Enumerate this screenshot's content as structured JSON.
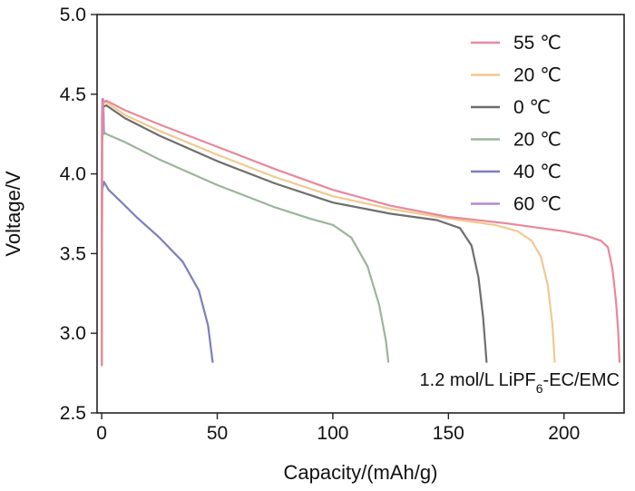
{
  "chart_data": {
    "type": "line",
    "title": "",
    "xlabel": "Capacity/(mAh/g)",
    "ylabel": "Voltage/V",
    "xlim": [
      -2,
      226
    ],
    "ylim": [
      2.5,
      5.0
    ],
    "xticks": [
      0,
      50,
      100,
      150,
      200
    ],
    "yticks": [
      2.5,
      3.0,
      3.5,
      4.0,
      4.5,
      5.0
    ],
    "xtick_labels": [
      "0",
      "50",
      "100",
      "150",
      "200"
    ],
    "ytick_labels": [
      "2.5",
      "3.0",
      "3.5",
      "4.0",
      "4.5",
      "5.0"
    ],
    "grid": false,
    "legend_position": "top-right",
    "annotation": {
      "prefix": "1.2 mol/L LiPF",
      "subscript": "6",
      "suffix": "-EC/EMC"
    },
    "series": [
      {
        "name": "55 ℃",
        "color": "#e8889c",
        "points": [
          [
            0,
            2.8
          ],
          [
            0.2,
            4.3
          ],
          [
            0.5,
            4.45
          ],
          [
            2,
            4.46
          ],
          [
            10,
            4.4
          ],
          [
            25,
            4.31
          ],
          [
            50,
            4.17
          ],
          [
            75,
            4.03
          ],
          [
            100,
            3.9
          ],
          [
            125,
            3.8
          ],
          [
            150,
            3.73
          ],
          [
            175,
            3.69
          ],
          [
            200,
            3.64
          ],
          [
            210,
            3.61
          ],
          [
            216,
            3.58
          ],
          [
            219,
            3.54
          ],
          [
            221,
            3.4
          ],
          [
            222.5,
            3.2
          ],
          [
            223.5,
            3.0
          ],
          [
            224,
            2.82
          ]
        ]
      },
      {
        "name": "20 ℃",
        "color": "#f2c98e",
        "points": [
          [
            0,
            2.8
          ],
          [
            0.2,
            4.3
          ],
          [
            0.5,
            4.44
          ],
          [
            2,
            4.45
          ],
          [
            10,
            4.37
          ],
          [
            25,
            4.27
          ],
          [
            50,
            4.12
          ],
          [
            75,
            3.98
          ],
          [
            100,
            3.86
          ],
          [
            125,
            3.78
          ],
          [
            150,
            3.72
          ],
          [
            170,
            3.68
          ],
          [
            180,
            3.64
          ],
          [
            186,
            3.58
          ],
          [
            190,
            3.48
          ],
          [
            193,
            3.3
          ],
          [
            195,
            3.05
          ],
          [
            196,
            2.82
          ]
        ]
      },
      {
        "name": "0 ℃",
        "color": "#6e6e6e",
        "points": [
          [
            0,
            2.8
          ],
          [
            0.2,
            4.3
          ],
          [
            0.5,
            4.42
          ],
          [
            2,
            4.43
          ],
          [
            10,
            4.35
          ],
          [
            25,
            4.24
          ],
          [
            50,
            4.08
          ],
          [
            75,
            3.94
          ],
          [
            100,
            3.82
          ],
          [
            125,
            3.75
          ],
          [
            145,
            3.71
          ],
          [
            155,
            3.66
          ],
          [
            160,
            3.55
          ],
          [
            163,
            3.35
          ],
          [
            165,
            3.1
          ],
          [
            166.5,
            2.82
          ]
        ]
      },
      {
        "name": "20 ℃",
        "color": "#9bb59a",
        "points": [
          [
            0,
            2.8
          ],
          [
            0.2,
            4.2
          ],
          [
            0.5,
            4.27
          ],
          [
            2,
            4.25
          ],
          [
            10,
            4.2
          ],
          [
            25,
            4.09
          ],
          [
            50,
            3.93
          ],
          [
            75,
            3.79
          ],
          [
            90,
            3.72
          ],
          [
            100,
            3.68
          ],
          [
            108,
            3.6
          ],
          [
            115,
            3.42
          ],
          [
            120,
            3.18
          ],
          [
            123,
            2.95
          ],
          [
            124,
            2.82
          ]
        ]
      },
      {
        "name": "40 ℃",
        "color": "#7d7fbc",
        "points": [
          [
            0,
            2.8
          ],
          [
            0.2,
            3.9
          ],
          [
            1,
            3.95
          ],
          [
            3,
            3.9
          ],
          [
            8,
            3.83
          ],
          [
            15,
            3.73
          ],
          [
            25,
            3.6
          ],
          [
            35,
            3.45
          ],
          [
            42,
            3.27
          ],
          [
            46,
            3.05
          ],
          [
            48,
            2.82
          ]
        ]
      },
      {
        "name": "60 ℃",
        "color": "#b28ad0",
        "points": [
          [
            0,
            2.8
          ],
          [
            0.1,
            4.35
          ],
          [
            0.3,
            4.47
          ],
          [
            0.6,
            4.47
          ],
          [
            0.8,
            4.4
          ],
          [
            1,
            4.25
          ]
        ]
      }
    ]
  }
}
